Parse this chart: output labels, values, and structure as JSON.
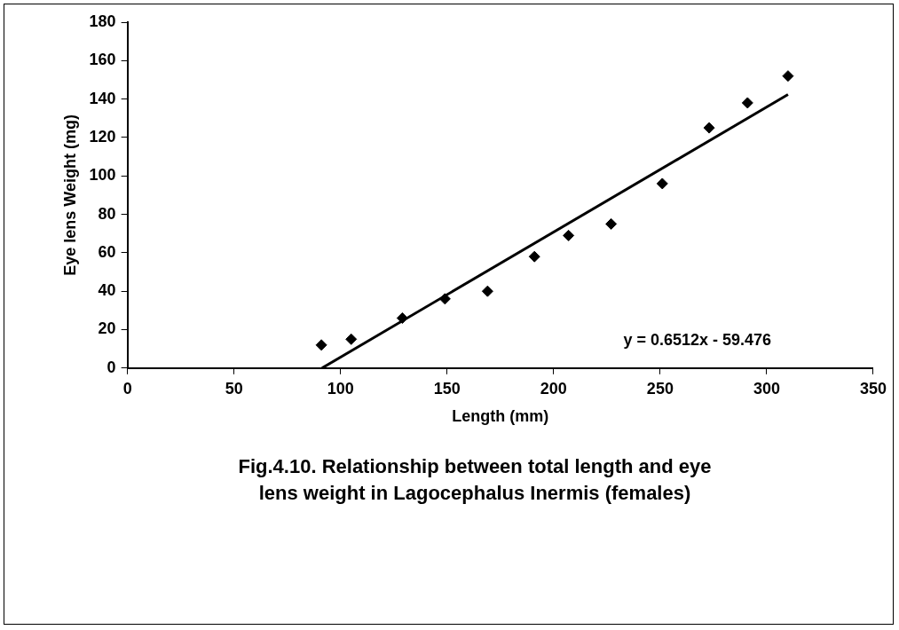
{
  "chart_data": {
    "type": "scatter",
    "xlabel": "Length (mm)",
    "ylabel": "Eye lens Weight (mg)",
    "xlim": [
      0,
      350
    ],
    "xticks": [
      0,
      50,
      100,
      150,
      200,
      250,
      300,
      350
    ],
    "ylim": [
      0,
      180
    ],
    "yticks": [
      0,
      20,
      40,
      60,
      80,
      100,
      120,
      140,
      160,
      180
    ],
    "grid": false,
    "legend": false,
    "marker": "diamond",
    "series": [
      {
        "color": "#000000",
        "x": [
          91,
          105,
          129,
          149,
          169,
          191,
          207,
          227,
          251,
          273,
          291,
          310
        ],
        "values": [
          12,
          15,
          26,
          36,
          40,
          58,
          69,
          75,
          96,
          125,
          138,
          152
        ]
      },
      {
        "type": "line",
        "color": "#000000",
        "marker": "none",
        "x": [
          91.3,
          310
        ],
        "values": [
          0,
          142.4
        ]
      }
    ],
    "annotations": [
      "y = 0.6512x - 59.476",
      "Fig.4.10. Relationship between total length and eye lens weight in Lagocephalus Inermis (females)"
    ]
  }
}
